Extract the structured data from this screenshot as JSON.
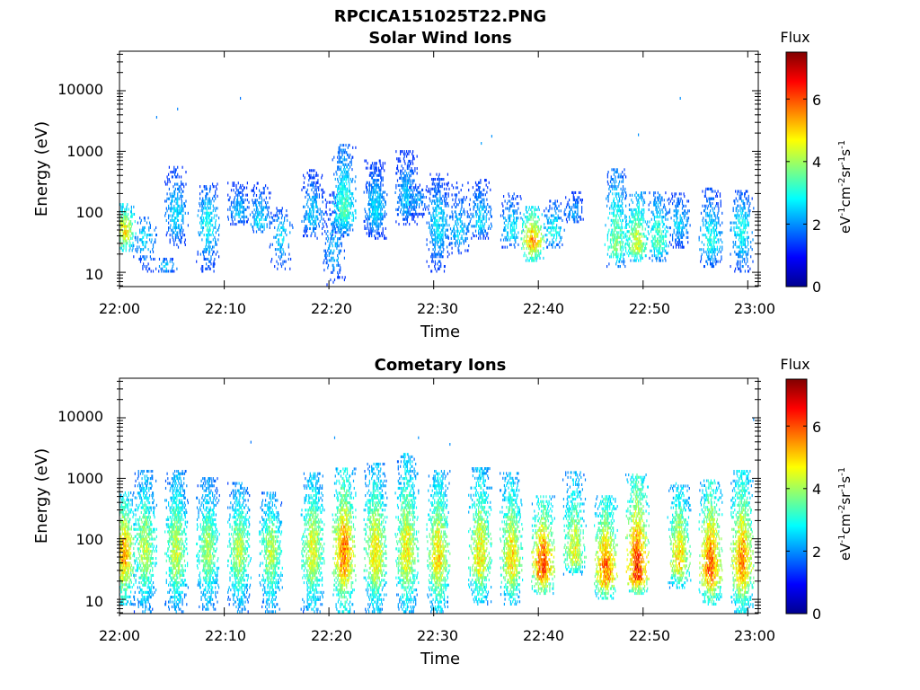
{
  "figure": {
    "title": "RPCICA151025T22.PNG"
  },
  "chart_data": [
    {
      "type": "heatmap",
      "title": "Solar Wind Ions",
      "xlabel": "Time",
      "ylabel": "Energy (eV)",
      "x_range": [
        "22:00",
        "23:01"
      ],
      "x_ticks": [
        "22:00",
        "22:10",
        "22:20",
        "22:30",
        "22:40",
        "22:50",
        "23:00"
      ],
      "y_scale": "log",
      "y_range": [
        5.8,
        45000
      ],
      "y_ticks": [
        "10",
        "100",
        "1000",
        "10000"
      ],
      "colorbar": {
        "title": "Flux",
        "range": [
          0,
          7.5
        ],
        "ticks": [
          "0",
          "2",
          "4",
          "6"
        ],
        "unit": "eV-1cm-2sr-1s-1",
        "colormap": "jet"
      },
      "bursts": [
        {
          "t": "22:00",
          "e_lo": 22,
          "e_hi": 130,
          "peak_e": 45,
          "level": 4.8,
          "density": 0.75
        },
        {
          "t": "22:02",
          "e_lo": 10,
          "e_hi": 90,
          "peak_e": 40,
          "level": 2.6,
          "density": 0.3
        },
        {
          "t": "22:04",
          "e_lo": 10,
          "e_hi": 16,
          "peak_e": 12,
          "level": 2.5,
          "density": 0.4
        },
        {
          "t": "22:05",
          "e_lo": 25,
          "e_hi": 550,
          "peak_e": 80,
          "level": 2.6,
          "density": 0.55
        },
        {
          "t": "22:08",
          "e_lo": 10,
          "e_hi": 320,
          "peak_e": 60,
          "level": 2.9,
          "density": 0.45
        },
        {
          "t": "22:11",
          "e_lo": 60,
          "e_hi": 300,
          "peak_e": 90,
          "level": 2.4,
          "density": 0.5
        },
        {
          "t": "22:13",
          "e_lo": 45,
          "e_hi": 300,
          "peak_e": 60,
          "level": 2.6,
          "density": 0.45
        },
        {
          "t": "22:15",
          "e_lo": 10,
          "e_hi": 120,
          "peak_e": 40,
          "level": 2.6,
          "density": 0.35
        },
        {
          "t": "22:18",
          "e_lo": 35,
          "e_hi": 500,
          "peak_e": 80,
          "level": 2.5,
          "density": 0.5
        },
        {
          "t": "22:20",
          "e_lo": 6,
          "e_hi": 200,
          "peak_e": 20,
          "level": 2.3,
          "density": 0.35
        },
        {
          "t": "22:21",
          "e_lo": 40,
          "e_hi": 1300,
          "peak_e": 90,
          "level": 3.4,
          "density": 0.8
        },
        {
          "t": "22:24",
          "e_lo": 35,
          "e_hi": 700,
          "peak_e": 100,
          "level": 2.6,
          "density": 0.8
        },
        {
          "t": "22:27",
          "e_lo": 60,
          "e_hi": 1000,
          "peak_e": 150,
          "level": 2.5,
          "density": 0.6
        },
        {
          "t": "22:28",
          "e_lo": 80,
          "e_hi": 280,
          "peak_e": 150,
          "level": 2.2,
          "density": 0.5
        },
        {
          "t": "22:30",
          "e_lo": 10,
          "e_hi": 400,
          "peak_e": 60,
          "level": 2.7,
          "density": 0.55
        },
        {
          "t": "22:32",
          "e_lo": 20,
          "e_hi": 300,
          "peak_e": 40,
          "level": 2.5,
          "density": 0.45
        },
        {
          "t": "22:34",
          "e_lo": 35,
          "e_hi": 350,
          "peak_e": 60,
          "level": 2.6,
          "density": 0.5
        },
        {
          "t": "22:37",
          "e_lo": 25,
          "e_hi": 200,
          "peak_e": 45,
          "level": 2.8,
          "density": 0.45
        },
        {
          "t": "22:39",
          "e_lo": 15,
          "e_hi": 120,
          "peak_e": 30,
          "level": 5.3,
          "density": 0.8
        },
        {
          "t": "22:41",
          "e_lo": 25,
          "e_hi": 150,
          "peak_e": 40,
          "level": 3.0,
          "density": 0.45
        },
        {
          "t": "22:43",
          "e_lo": 60,
          "e_hi": 200,
          "peak_e": 90,
          "level": 2.2,
          "density": 0.45
        },
        {
          "t": "22:47",
          "e_lo": 12,
          "e_hi": 500,
          "peak_e": 25,
          "level": 3.7,
          "density": 0.6
        },
        {
          "t": "22:49",
          "e_lo": 15,
          "e_hi": 200,
          "peak_e": 25,
          "level": 4.4,
          "density": 0.75
        },
        {
          "t": "22:51",
          "e_lo": 15,
          "e_hi": 200,
          "peak_e": 30,
          "level": 3.5,
          "density": 0.55
        },
        {
          "t": "22:53",
          "e_lo": 25,
          "e_hi": 200,
          "peak_e": 60,
          "level": 2.6,
          "density": 0.5
        },
        {
          "t": "22:56",
          "e_lo": 12,
          "e_hi": 230,
          "peak_e": 30,
          "level": 3.0,
          "density": 0.6
        },
        {
          "t": "22:59",
          "e_lo": 10,
          "e_hi": 220,
          "peak_e": 50,
          "level": 3.0,
          "density": 0.6
        }
      ],
      "isolated_points": [
        {
          "t": "22:03",
          "e": 3500,
          "level": 1.9
        },
        {
          "t": "22:05",
          "e": 4800,
          "level": 1.9
        },
        {
          "t": "22:11",
          "e": 7200,
          "level": 1.8
        },
        {
          "t": "22:34",
          "e": 1300,
          "level": 2.1
        },
        {
          "t": "22:35",
          "e": 1700,
          "level": 2.0
        },
        {
          "t": "22:49",
          "e": 1800,
          "level": 2.0
        },
        {
          "t": "22:53",
          "e": 7200,
          "level": 2.0
        }
      ]
    },
    {
      "type": "heatmap",
      "title": "Cometary Ions",
      "xlabel": "Time",
      "ylabel": "Energy (eV)",
      "x_range": [
        "22:00",
        "23:01"
      ],
      "x_ticks": [
        "22:00",
        "22:10",
        "22:20",
        "22:30",
        "22:40",
        "22:50",
        "23:00"
      ],
      "y_scale": "log",
      "y_range": [
        5.8,
        45000
      ],
      "y_ticks": [
        "10",
        "100",
        "1000",
        "10000"
      ],
      "colorbar": {
        "title": "Flux",
        "range": [
          0,
          7.5
        ],
        "ticks": [
          "0",
          "2",
          "4",
          "6"
        ],
        "unit": "eV-1cm-2sr-1s-1",
        "colormap": "jet"
      },
      "bursts": [
        {
          "t": "22:00",
          "e_lo": 8,
          "e_hi": 600,
          "peak_e": 50,
          "level": 5.3,
          "density": 0.85
        },
        {
          "t": "22:02",
          "e_lo": 6,
          "e_hi": 1300,
          "peak_e": 60,
          "level": 4.2,
          "density": 0.7
        },
        {
          "t": "22:05",
          "e_lo": 6,
          "e_hi": 1300,
          "peak_e": 55,
          "level": 4.3,
          "density": 0.8
        },
        {
          "t": "22:08",
          "e_lo": 6,
          "e_hi": 1000,
          "peak_e": 60,
          "level": 4.0,
          "density": 0.75
        },
        {
          "t": "22:11",
          "e_lo": 6,
          "e_hi": 800,
          "peak_e": 60,
          "level": 4.2,
          "density": 0.75
        },
        {
          "t": "22:14",
          "e_lo": 6,
          "e_hi": 550,
          "peak_e": 60,
          "level": 4.2,
          "density": 0.75
        },
        {
          "t": "22:18",
          "e_lo": 6,
          "e_hi": 1200,
          "peak_e": 60,
          "level": 4.6,
          "density": 0.8
        },
        {
          "t": "22:21",
          "e_lo": 6,
          "e_hi": 1500,
          "peak_e": 50,
          "level": 5.6,
          "density": 0.85
        },
        {
          "t": "22:24",
          "e_lo": 6,
          "e_hi": 1700,
          "peak_e": 50,
          "level": 4.8,
          "density": 0.8
        },
        {
          "t": "22:27",
          "e_lo": 6,
          "e_hi": 2500,
          "peak_e": 55,
          "level": 4.7,
          "density": 0.8
        },
        {
          "t": "22:30",
          "e_lo": 6,
          "e_hi": 1300,
          "peak_e": 45,
          "level": 4.9,
          "density": 0.8
        },
        {
          "t": "22:34",
          "e_lo": 8,
          "e_hi": 1500,
          "peak_e": 45,
          "level": 4.8,
          "density": 0.8
        },
        {
          "t": "22:37",
          "e_lo": 8,
          "e_hi": 1200,
          "peak_e": 40,
          "level": 4.9,
          "density": 0.8
        },
        {
          "t": "22:40",
          "e_lo": 12,
          "e_hi": 500,
          "peak_e": 30,
          "level": 6.0,
          "density": 0.85
        },
        {
          "t": "22:43",
          "e_lo": 25,
          "e_hi": 1300,
          "peak_e": 45,
          "level": 4.6,
          "density": 0.7
        },
        {
          "t": "22:46",
          "e_lo": 10,
          "e_hi": 500,
          "peak_e": 25,
          "level": 5.8,
          "density": 0.85
        },
        {
          "t": "22:49",
          "e_lo": 12,
          "e_hi": 1200,
          "peak_e": 25,
          "level": 6.2,
          "density": 0.85
        },
        {
          "t": "22:53",
          "e_lo": 15,
          "e_hi": 800,
          "peak_e": 40,
          "level": 5.0,
          "density": 0.75
        },
        {
          "t": "22:56",
          "e_lo": 8,
          "e_hi": 900,
          "peak_e": 30,
          "level": 5.8,
          "density": 0.85
        },
        {
          "t": "22:59",
          "e_lo": 6,
          "e_hi": 1300,
          "peak_e": 35,
          "level": 5.5,
          "density": 0.85
        }
      ],
      "isolated_points": [
        {
          "t": "22:12",
          "e": 3800,
          "level": 1.8
        },
        {
          "t": "22:20",
          "e": 4500,
          "level": 2.0
        },
        {
          "t": "22:28",
          "e": 4500,
          "level": 2.0
        },
        {
          "t": "22:31",
          "e": 3500,
          "level": 2.0
        },
        {
          "t": "23:00",
          "e": 9000,
          "level": 2.0
        }
      ]
    }
  ]
}
